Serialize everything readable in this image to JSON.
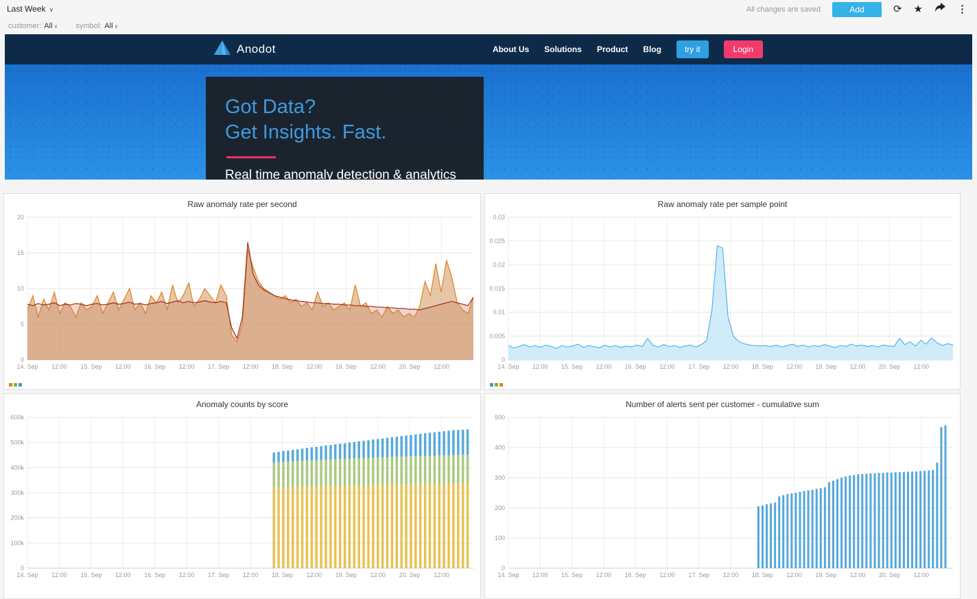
{
  "toolbar": {
    "time_range": "Last Week",
    "saved_text": "All changes are saved",
    "add_label": "Add"
  },
  "filters": {
    "customer_label": "customer:",
    "customer_value": "All",
    "symbol_label": "symbol:",
    "symbol_value": "All"
  },
  "hero": {
    "brand": "Anodot",
    "nav": [
      {
        "label": "About Us"
      },
      {
        "label": "Solutions"
      },
      {
        "label": "Product"
      },
      {
        "label": "Blog"
      }
    ],
    "try_label": "try it",
    "login_label": "Login",
    "headline1": "Got Data?",
    "headline2": "Get Insights. Fast.",
    "subheadline": "Real time anomaly detection & analytics",
    "colors": {
      "nav_bg": "#0d2b49",
      "headline": "#3f9ae0",
      "accent": "#ee2f68",
      "gradient_top": "#1a70cf",
      "gradient_bottom": "#2b92e8"
    }
  },
  "chart_data": [
    {
      "type": "line",
      "title": "Raw anomaly rate per second",
      "ylim": [
        0,
        20
      ],
      "y_ticks": [
        {
          "v": 0,
          "label": "0"
        },
        {
          "v": 5,
          "label": "5"
        },
        {
          "v": 10,
          "label": "10"
        },
        {
          "v": 15,
          "label": "15"
        },
        {
          "v": 20,
          "label": "20"
        }
      ],
      "x_ticks": [
        "14. Sep",
        "12:00",
        "15. Sep",
        "12:00",
        "16. Sep",
        "12:00",
        "17. Sep",
        "12:00",
        "18. Sep",
        "12:00",
        "19. Sep",
        "12:00",
        "20. Sep",
        "12:00"
      ],
      "x_tick_div": 14,
      "legend_colors": [
        "#e8820e",
        "#7cb342",
        "#4a90d2"
      ],
      "series": [
        {
          "color": "#e0821e",
          "fill": "#d8a878",
          "fill_opacity": 0.65,
          "values": [
            7,
            9,
            6,
            8.5,
            7,
            9.5,
            6.5,
            8,
            7.5,
            6,
            8,
            7,
            7.5,
            9,
            6.5,
            8,
            9.5,
            7,
            8.5,
            10,
            7,
            8,
            6.5,
            9,
            8,
            9.5,
            7,
            10.5,
            8,
            9,
            10.8,
            7.5,
            8.5,
            10,
            9,
            8,
            10.5,
            9,
            3.5,
            2.5,
            5,
            15.5,
            13,
            11,
            10,
            9.5,
            9,
            8.5,
            9,
            8,
            8.5,
            7.5,
            8,
            7,
            9.5,
            7.5,
            8,
            7,
            7.5,
            8,
            7,
            10.5,
            7.5,
            8,
            6.5,
            7,
            6,
            7.5,
            6.5,
            7,
            6,
            6.5,
            6,
            7.5,
            11,
            9,
            13.5,
            9.5,
            14,
            11.5,
            8,
            7,
            6.5,
            8.8
          ]
        },
        {
          "color": "#9c2c1c",
          "fill": "#c27b5a",
          "fill_opacity": 0.3,
          "values": [
            7.8,
            7.6,
            7.9,
            7.7,
            7.8,
            8.0,
            7.6,
            7.8,
            7.7,
            7.9,
            7.8,
            7.6,
            7.8,
            7.9,
            7.7,
            7.8,
            8.0,
            7.8,
            7.9,
            8.1,
            7.8,
            7.9,
            7.7,
            7.9,
            8.0,
            8.2,
            7.9,
            8.1,
            8.3,
            8.0,
            8.2,
            8.0,
            8.1,
            8.3,
            8.1,
            8.0,
            8.2,
            8.0,
            4.5,
            3.0,
            6.0,
            16.5,
            12.0,
            10.5,
            9.8,
            9.4,
            9.0,
            8.8,
            8.6,
            8.4,
            8.3,
            8.2,
            8.1,
            8.0,
            8.0,
            7.9,
            7.9,
            7.8,
            7.8,
            7.7,
            7.7,
            7.6,
            7.6,
            7.5,
            7.5,
            7.4,
            7.4,
            7.3,
            7.3,
            7.2,
            7.2,
            7.1,
            7.1,
            7.0,
            7.2,
            7.4,
            7.6,
            7.8,
            8.0,
            8.2,
            8.0,
            7.8,
            7.6,
            8.8
          ]
        }
      ]
    },
    {
      "type": "line",
      "title": "Raw anomaly rate per sample point",
      "ylim": [
        0,
        0.03
      ],
      "y_ticks": [
        {
          "v": 0,
          "label": "0"
        },
        {
          "v": 0.005,
          "label": "0.005"
        },
        {
          "v": 0.01,
          "label": "0.01"
        },
        {
          "v": 0.015,
          "label": "0.015"
        },
        {
          "v": 0.02,
          "label": "0.02"
        },
        {
          "v": 0.025,
          "label": "0.025"
        },
        {
          "v": 0.03,
          "label": "0.03"
        }
      ],
      "x_ticks": [
        "14. Sep",
        "12:00",
        "15. Sep",
        "12:00",
        "16. Sep",
        "12:00",
        "17. Sep",
        "12:00",
        "18. Sep",
        "12:00",
        "19. Sep",
        "12:00",
        "20. Sep",
        "12:00"
      ],
      "x_tick_div": 14,
      "legend_colors": [
        "#4a90d2",
        "#7cb342",
        "#e8820e"
      ],
      "series": [
        {
          "color": "#4fb3e8",
          "fill": "#c9e9f8",
          "fill_opacity": 0.85,
          "values": [
            0.003,
            0.0025,
            0.0028,
            0.0032,
            0.0027,
            0.003,
            0.0026,
            0.0031,
            0.0028,
            0.0024,
            0.003,
            0.0027,
            0.0029,
            0.0033,
            0.0026,
            0.003,
            0.0028,
            0.0025,
            0.0031,
            0.0027,
            0.003,
            0.0026,
            0.0029,
            0.0027,
            0.0031,
            0.0028,
            0.0045,
            0.003,
            0.0027,
            0.0032,
            0.0028,
            0.003,
            0.0026,
            0.0029,
            0.0031,
            0.0027,
            0.0032,
            0.004,
            0.0105,
            0.024,
            0.0235,
            0.009,
            0.005,
            0.0038,
            0.0034,
            0.0031,
            0.003,
            0.0029,
            0.003,
            0.0028,
            0.0031,
            0.0027,
            0.003,
            0.0033,
            0.0028,
            0.0031,
            0.0027,
            0.003,
            0.0028,
            0.0032,
            0.0029,
            0.0026,
            0.003,
            0.0028,
            0.0033,
            0.0029,
            0.0031,
            0.0028,
            0.003,
            0.0027,
            0.0031,
            0.0029,
            0.0028,
            0.0045,
            0.0032,
            0.0038,
            0.0029,
            0.0041,
            0.0033,
            0.0046,
            0.0036,
            0.003,
            0.0034,
            0.0031
          ]
        }
      ]
    },
    {
      "type": "stacked-bar",
      "title": "Anomaly counts by score",
      "ylim": [
        0,
        600
      ],
      "y_ticks": [
        {
          "v": 0,
          "label": "0"
        },
        {
          "v": 100,
          "label": "100k"
        },
        {
          "v": 200,
          "label": "200k"
        },
        {
          "v": 300,
          "label": "300k"
        },
        {
          "v": 400,
          "label": "400k"
        },
        {
          "v": 500,
          "label": "500k"
        },
        {
          "v": 600,
          "label": "600k"
        }
      ],
      "x_ticks": [
        "14. Sep",
        "12:00",
        "15. Sep",
        "12:00",
        "16. Sep",
        "12:00",
        "17. Sep",
        "12:00",
        "18. Sep",
        "12:00",
        "19. Sep",
        "12:00",
        "20. Sep",
        "12:00"
      ],
      "x_tick_div": 14,
      "bar_region": [
        0.55,
        0.995
      ],
      "value_unit": "thousands",
      "series": [
        {
          "color": "#e9c050",
          "values": [
            320,
            321,
            321,
            322,
            322,
            323,
            323,
            324,
            324,
            325,
            325,
            326,
            326,
            327,
            327,
            328,
            328,
            329,
            329,
            330,
            330,
            331,
            331,
            332,
            332,
            333,
            333,
            334,
            334,
            335,
            335,
            335,
            336,
            336,
            336,
            337,
            337,
            337,
            338,
            338,
            338,
            339
          ]
        },
        {
          "color": "#a9c87e",
          "values": [
            100,
            101,
            102,
            102,
            103,
            103,
            104,
            104,
            105,
            105,
            105,
            106,
            106,
            106,
            107,
            107,
            107,
            108,
            108,
            108,
            108,
            109,
            109,
            109,
            109,
            110,
            110,
            110,
            110,
            110,
            111,
            111,
            111,
            111,
            111,
            112,
            112,
            112,
            112,
            112,
            113,
            113
          ]
        },
        {
          "color": "#55a9db",
          "values": [
            40,
            41,
            43,
            44,
            46,
            47,
            49,
            50,
            52,
            53,
            56,
            56,
            58,
            60,
            61,
            62,
            65,
            65,
            68,
            69,
            71,
            72,
            74,
            75,
            78,
            78,
            80,
            82,
            84,
            85,
            86,
            89,
            90,
            92,
            94,
            94,
            96,
            98,
            99,
            100,
            100,
            100
          ]
        }
      ]
    },
    {
      "type": "bar",
      "title": "Number of alerts sent per customer - cumulative sum",
      "ylim": [
        0,
        500
      ],
      "y_ticks": [
        {
          "v": 0,
          "label": "0"
        },
        {
          "v": 100,
          "label": "100"
        },
        {
          "v": 200,
          "label": "200"
        },
        {
          "v": 300,
          "label": "300"
        },
        {
          "v": 400,
          "label": "400"
        },
        {
          "v": 500,
          "label": "500"
        }
      ],
      "x_ticks": [
        "14. Sep",
        "12:00",
        "15. Sep",
        "12:00",
        "16. Sep",
        "12:00",
        "17. Sep",
        "12:00",
        "18. Sep",
        "12:00",
        "19. Sep",
        "12:00",
        "20. Sep",
        "12:00"
      ],
      "x_tick_div": 14,
      "bar_region": [
        0.56,
        0.99
      ],
      "series": [
        {
          "color": "#54a7dc",
          "values": [
            205,
            208,
            212,
            215,
            218,
            238,
            242,
            246,
            248,
            250,
            253,
            256,
            258,
            260,
            263,
            265,
            268,
            285,
            290,
            295,
            300,
            304,
            307,
            309,
            311,
            312,
            313,
            314,
            315,
            316,
            316,
            317,
            317,
            318,
            318,
            319,
            320,
            320,
            321,
            322,
            323,
            324,
            326,
            350,
            468,
            474
          ]
        }
      ]
    }
  ]
}
